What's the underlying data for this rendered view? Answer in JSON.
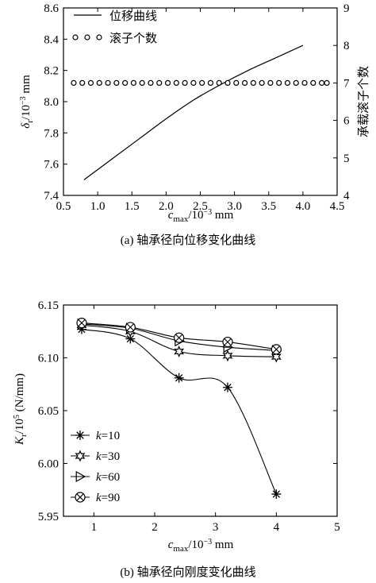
{
  "chart_data": [
    {
      "type": "line",
      "caption": "(a) 轴承径向位移变化曲线",
      "xlabel": {
        "main": "c",
        "sub": "max",
        "unit": "/10",
        "exp": "−3",
        "tail": " mm"
      },
      "ylabel_left": {
        "main": "δ",
        "sub": "r",
        "unit": "/10",
        "exp": "−3",
        "tail": " mm"
      },
      "ylabel_right": "承载滚子个数",
      "xlim": [
        0.5,
        4.5
      ],
      "ylim_left": [
        7.4,
        8.6
      ],
      "ylim_right": [
        4,
        9
      ],
      "x_ticks": [
        "0.5",
        "1.0",
        "1.5",
        "2.0",
        "2.5",
        "3.0",
        "3.5",
        "4.0",
        "4.5"
      ],
      "y_ticks_left": [
        "7.4",
        "7.6",
        "7.8",
        "8.0",
        "8.2",
        "8.4",
        "8.6"
      ],
      "y_ticks_right": [
        "4",
        "5",
        "6",
        "7",
        "8",
        "9"
      ],
      "legend_position": "top-left",
      "series": [
        {
          "name": "位移曲线",
          "axis": "left",
          "style": "line",
          "x": [
            0.8,
            1.2,
            1.6,
            2.0,
            2.4,
            2.8,
            3.2,
            3.6,
            4.0
          ],
          "values": [
            7.5,
            7.63,
            7.76,
            7.89,
            8.01,
            8.11,
            8.2,
            8.28,
            8.36
          ]
        },
        {
          "name": "滚子个数",
          "axis": "right",
          "style": "circles",
          "x": [
            0.65,
            0.775,
            0.9,
            1.025,
            1.15,
            1.275,
            1.4,
            1.525,
            1.65,
            1.775,
            1.9,
            2.025,
            2.15,
            2.275,
            2.4,
            2.525,
            2.65,
            2.775,
            2.9,
            3.025,
            3.15,
            3.275,
            3.4,
            3.525,
            3.65,
            3.775,
            3.9,
            4.025,
            4.15,
            4.275,
            4.35
          ],
          "values": [
            7,
            7,
            7,
            7,
            7,
            7,
            7,
            7,
            7,
            7,
            7,
            7,
            7,
            7,
            7,
            7,
            7,
            7,
            7,
            7,
            7,
            7,
            7,
            7,
            7,
            7,
            7,
            7,
            7,
            7,
            7
          ]
        }
      ]
    },
    {
      "type": "line",
      "caption": "(b) 轴承径向刚度变化曲线",
      "xlabel": {
        "main": "c",
        "sub": "max",
        "unit": "/10",
        "exp": "−3",
        "tail": " mm"
      },
      "ylabel_left": {
        "main": "K",
        "sub": "r",
        "unit": "/10",
        "exp": "5",
        "tail": " (N/mm)"
      },
      "xlim": [
        0.5,
        5
      ],
      "ylim": [
        5.95,
        6.15
      ],
      "x_ticks": [
        "1",
        "2",
        "3",
        "4",
        "5"
      ],
      "y_ticks": [
        "5.95",
        "6.00",
        "6.05",
        "6.10",
        "6.15"
      ],
      "legend_position": "bottom-left",
      "series": [
        {
          "name": "k=10",
          "marker": "star",
          "x": [
            0.8,
            1.6,
            2.4,
            3.2,
            4.0
          ],
          "values": [
            6.127,
            6.118,
            6.081,
            6.072,
            5.971
          ]
        },
        {
          "name": "k=30",
          "marker": "star6",
          "x": [
            0.8,
            1.6,
            2.4,
            3.2,
            4.0
          ],
          "values": [
            6.131,
            6.125,
            6.106,
            6.102,
            6.101
          ]
        },
        {
          "name": "k=60",
          "marker": "triangle-right",
          "x": [
            0.8,
            1.6,
            2.4,
            3.2,
            4.0
          ],
          "values": [
            6.132,
            6.128,
            6.116,
            6.11,
            6.107
          ]
        },
        {
          "name": "k=90",
          "marker": "circle-x",
          "x": [
            0.8,
            1.6,
            2.4,
            3.2,
            4.0
          ],
          "values": [
            6.133,
            6.129,
            6.119,
            6.115,
            6.108
          ]
        }
      ]
    }
  ]
}
